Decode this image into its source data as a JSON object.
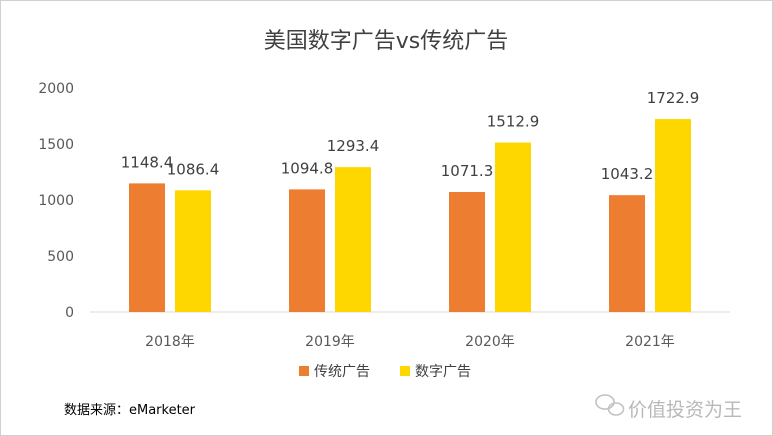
{
  "chart_data": {
    "type": "bar",
    "title": "美国数字广告vs传统广告",
    "categories": [
      "2018年",
      "2019年",
      "2020年",
      "2021年"
    ],
    "series": [
      {
        "name": "传统广告",
        "values": [
          1148.4,
          1094.8,
          1071.3,
          1043.2
        ],
        "color": "#ed7d31"
      },
      {
        "name": "数字广告",
        "values": [
          1086.4,
          1293.4,
          1512.9,
          1722.9
        ],
        "color": "#ffd700"
      }
    ],
    "yticks": [
      "0",
      "500",
      "1000",
      "1500",
      "2000"
    ],
    "ylim": [
      0,
      2000
    ],
    "grid": false,
    "legend_position": "bottom",
    "data_labels": [
      [
        "1148.4",
        "1094.8",
        "1071.3",
        "1043.2"
      ],
      [
        "1086.4",
        "1293.4",
        "1512.9",
        "1722.9"
      ]
    ]
  },
  "source_note": "数据来源：eMarketer",
  "watermark": {
    "text": "价值投资为王",
    "icon": "wechat-logo-icon"
  }
}
